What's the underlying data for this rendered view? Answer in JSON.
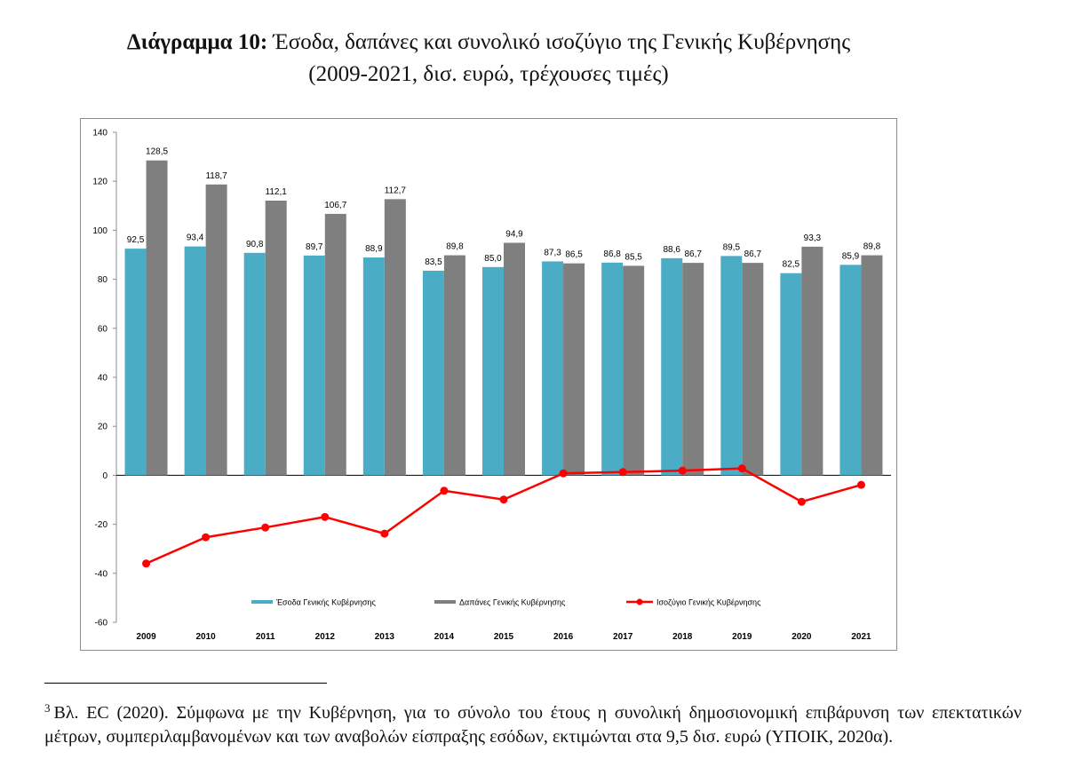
{
  "title": {
    "prefix": "Διάγραμμα 10:",
    "line1": " Έσοδα, δαπάνες και συνολικό ισοζύγιο της Γενικής Κυβέρνησης",
    "line2": "(2009-2021, δισ. ευρώ, τρέχουσες τιμές)"
  },
  "chart_data": {
    "type": "bar",
    "categories": [
      "2009",
      "2010",
      "2011",
      "2012",
      "2013",
      "2014",
      "2015",
      "2016",
      "2017",
      "2018",
      "2019",
      "2020",
      "2021"
    ],
    "series": [
      {
        "name": "Έσοδα Γενικής Κυβέρνησης",
        "type": "bar",
        "color": "#4bacc6",
        "values": [
          92.5,
          93.4,
          90.8,
          89.7,
          88.9,
          83.5,
          85.0,
          87.3,
          86.8,
          88.6,
          89.5,
          82.5,
          85.9
        ],
        "labels": [
          "92,5",
          "93,4",
          "90,8",
          "89,7",
          "88,9",
          "83,5",
          "85,0",
          "87,3",
          "86,8",
          "88,6",
          "89,5",
          "82,5",
          "85,9"
        ]
      },
      {
        "name": "Δαπάνες Γενικής Κυβέρνησης",
        "type": "bar",
        "color": "#7f7f7f",
        "values": [
          128.5,
          118.7,
          112.1,
          106.7,
          112.7,
          89.8,
          94.9,
          86.5,
          85.5,
          86.7,
          86.7,
          93.3,
          89.8
        ],
        "labels": [
          "128,5",
          "118,7",
          "112,1",
          "106,7",
          "112,7",
          "89,8",
          "94,9",
          "86,5",
          "85,5",
          "86,7",
          "86,7",
          "93,3",
          "89,8"
        ]
      },
      {
        "name": "Ισοζύγιο Γενικής Κυβέρνησης",
        "type": "line",
        "color": "#ff0000",
        "values": [
          -36.0,
          -25.3,
          -21.3,
          -17.0,
          -23.8,
          -6.3,
          -9.9,
          0.8,
          1.3,
          1.9,
          2.8,
          -10.8,
          -3.9
        ]
      }
    ],
    "yticks": [
      "140",
      "120",
      "100",
      "80",
      "60",
      "40",
      "20",
      "0",
      "-20",
      "-40",
      "-60"
    ],
    "ylim": [
      -60,
      140
    ],
    "grid": false,
    "legend_position": "bottom-inside"
  },
  "footnote": {
    "marker": "3",
    "text": "Βλ. EC (2020). Σύμφωνα με την Κυβέρνηση, για το σύνολο του έτους η συνολική δημοσιονομική επιβάρυνση των επεκτατικών μέτρων, συμπεριλαμβανομένων και των αναβολών είσπραξης εσόδων, εκτιμώνται στα 9,5 δισ. ευρώ (ΥΠΟΙΚ, 2020α)."
  }
}
